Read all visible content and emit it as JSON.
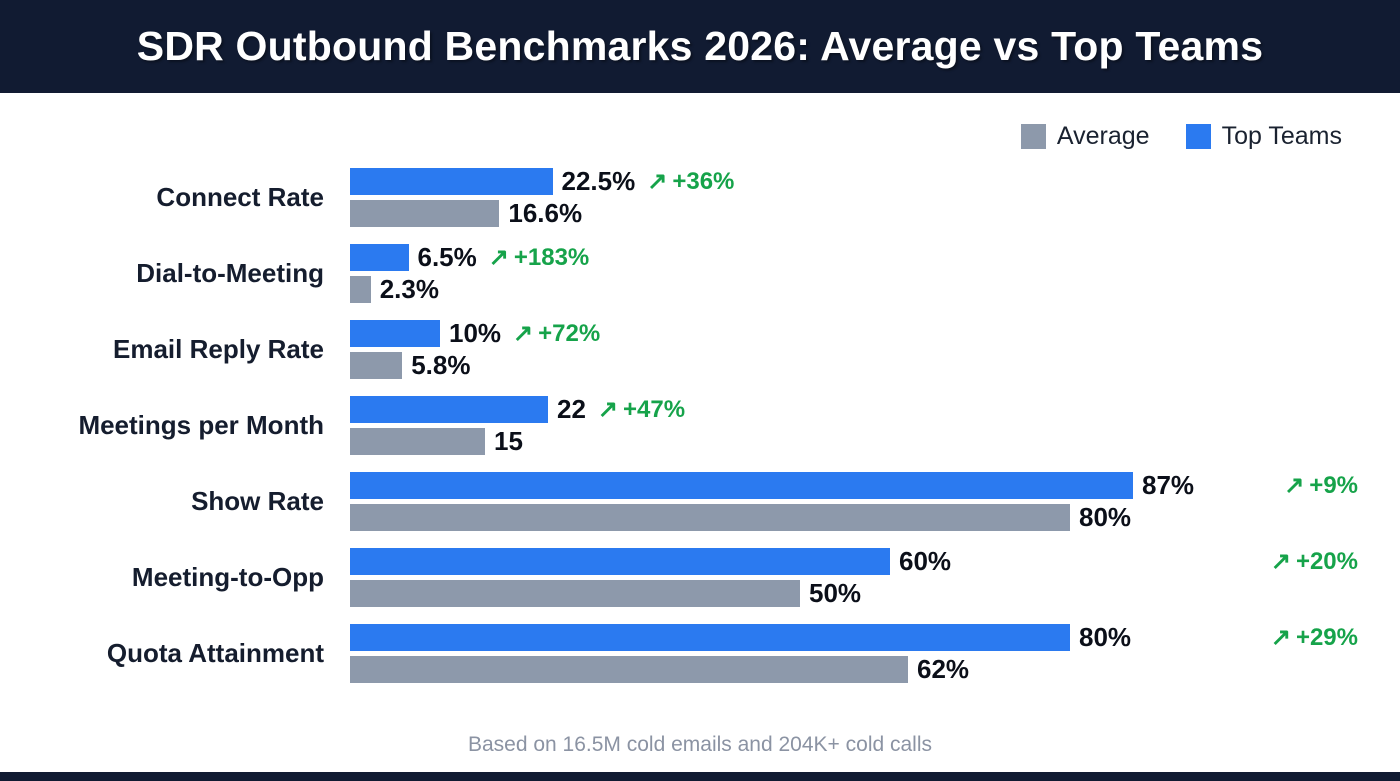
{
  "header": {
    "title": "SDR Outbound Benchmarks 2026: Average vs Top Teams"
  },
  "legend": {
    "average_label": "Average",
    "top_teams_label": "Top Teams"
  },
  "colors": {
    "top_teams": "#2b7af0",
    "average": "#8d99ab",
    "delta_green": "#16a34a",
    "header_bg": "#111b32"
  },
  "icons": {
    "trend_arrow": "↗"
  },
  "footer": {
    "note": "Based on 16.5M cold emails and 204K+ cold calls"
  },
  "chart_data": {
    "type": "bar",
    "orientation": "horizontal",
    "title": "SDR Outbound Benchmarks 2026: Average vs Top Teams",
    "xlabel": "",
    "ylabel": "",
    "xmax": 90,
    "grid": false,
    "legend_position": "top-right",
    "categories": [
      "Connect Rate",
      "Dial-to-Meeting",
      "Email Reply Rate",
      "Meetings per Month",
      "Show Rate",
      "Meeting-to-Opp",
      "Quota Attainment"
    ],
    "series": [
      {
        "name": "Top Teams",
        "color": "#2b7af0",
        "values": [
          22.5,
          6.5,
          10,
          22,
          87,
          60,
          80
        ]
      },
      {
        "name": "Average",
        "color": "#8d99ab",
        "values": [
          16.6,
          2.3,
          5.8,
          15,
          80,
          50,
          62
        ]
      }
    ],
    "value_labels_top": [
      "22.5%",
      "6.5%",
      "10%",
      "22",
      "87%",
      "60%",
      "80%"
    ],
    "value_labels_avg": [
      "16.6%",
      "2.3%",
      "5.8%",
      "15",
      "80%",
      "50%",
      "62%"
    ],
    "deltas": [
      "+36%",
      "+183%",
      "+72%",
      "+47%",
      "+9%",
      "+20%",
      "+29%"
    ],
    "delta_at_right": [
      false,
      false,
      false,
      false,
      true,
      true,
      true
    ]
  }
}
